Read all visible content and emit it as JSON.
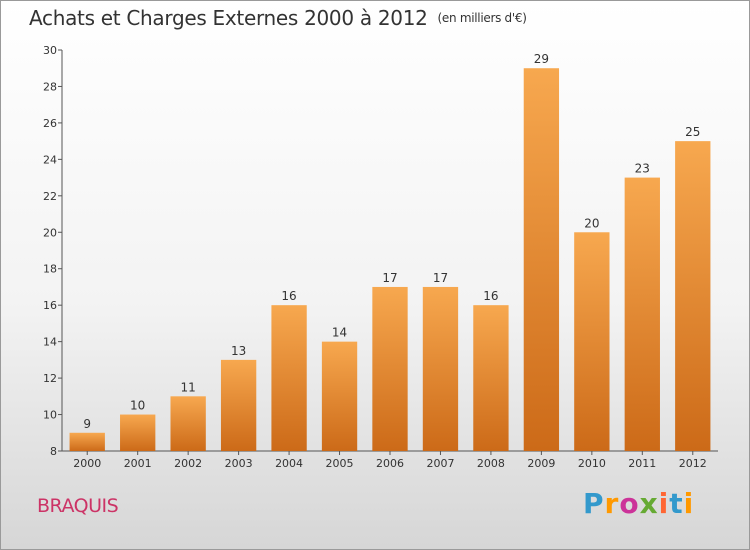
{
  "title": "Achats et Charges Externes 2000 à 2012",
  "unit_note": "(en milliers d'€)",
  "commune": "BRAQUIS",
  "logo_text": "Proxiti",
  "colors": {
    "bar_top": "#f7a84f",
    "bar_bottom": "#cc6a18",
    "title": "#333333",
    "commune": "#cc3366"
  },
  "chart_data": {
    "type": "bar",
    "title": "Achats et Charges Externes 2000 à 2012",
    "subtitle": "(en milliers d'€)",
    "categories": [
      "2000",
      "2001",
      "2002",
      "2003",
      "2004",
      "2005",
      "2006",
      "2007",
      "2008",
      "2009",
      "2010",
      "2011",
      "2012"
    ],
    "values": [
      9,
      10,
      11,
      13,
      16,
      14,
      17,
      17,
      16,
      29,
      20,
      23,
      25
    ],
    "ylim": [
      8,
      30
    ],
    "yticks": [
      8,
      10,
      12,
      14,
      16,
      18,
      20,
      22,
      24,
      26,
      28,
      30
    ],
    "grid": false,
    "legend": "none"
  }
}
